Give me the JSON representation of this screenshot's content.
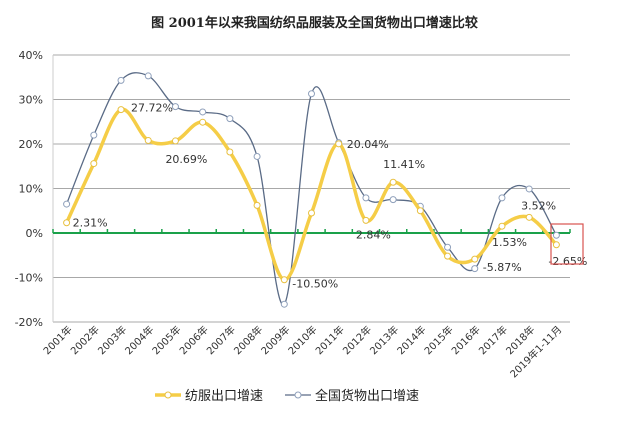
{
  "chart_data": {
    "type": "line",
    "title": "图    2001年以来我国纺织品服装及全国货物出口增速比较",
    "xlabel": "",
    "ylabel": "",
    "categories": [
      "2001年",
      "2002年",
      "2003年",
      "2004年",
      "2005年",
      "2006年",
      "2007年",
      "2008年",
      "2009年",
      "2010年",
      "2011年",
      "2012年",
      "2013年",
      "2014年",
      "2015年",
      "2016年",
      "2017年",
      "2018年",
      "2019年1-11月"
    ],
    "ylim": [
      -20,
      40
    ],
    "yticks": [
      "-20%",
      "-10%",
      "0%",
      "10%",
      "20%",
      "30%",
      "40%"
    ],
    "ytick_values": [
      -20,
      -10,
      0,
      10,
      20,
      30,
      40
    ],
    "grid": true,
    "legend_position": "bottom",
    "series": [
      {
        "name": "纺服出口增速",
        "color": "#f5cd47",
        "values": [
          2.31,
          15.6,
          27.72,
          20.8,
          20.69,
          24.9,
          18.2,
          6.2,
          -10.5,
          4.5,
          20.04,
          2.84,
          11.41,
          5.0,
          -5.2,
          -5.87,
          1.53,
          3.52,
          -2.65
        ],
        "data_labels": {
          "0": "2.31%",
          "2": "27.72%",
          "4": "20.69%",
          "8": "-10.50%",
          "10": "20.04%",
          "11": "2.84%",
          "12": "11.41%",
          "15": "-5.87%",
          "16": "1.53%",
          "17": "3.52%",
          "18": "-2.65%"
        }
      },
      {
        "name": "全国货物出口增速",
        "color": "#5a6b86",
        "values": [
          6.5,
          22.0,
          34.3,
          35.3,
          28.4,
          27.2,
          25.7,
          17.2,
          -16.0,
          31.3,
          20.3,
          7.9,
          7.5,
          6.0,
          -3.2,
          -8.0,
          7.9,
          9.9,
          -0.5
        ]
      }
    ],
    "zero_line_color": "#1aa14a",
    "highlight_box_color": "#d9534f",
    "highlight_category": "2019年1-11月"
  }
}
